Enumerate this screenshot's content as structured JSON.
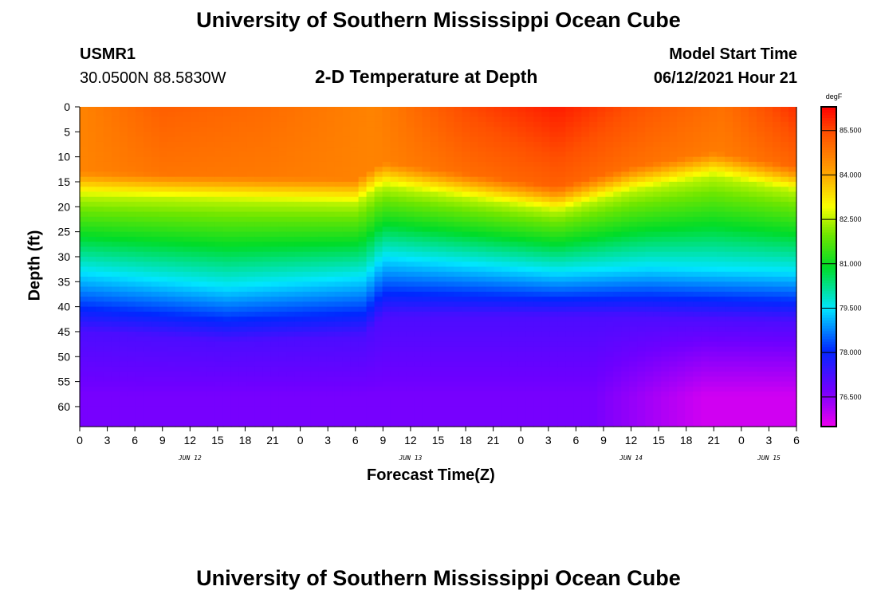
{
  "header": {
    "title": "University of Southern Mississippi Ocean Cube",
    "station": "USMR1",
    "coords": "30.0500N  88.5830W",
    "subtitle": "2-D Temperature at Depth",
    "model_label": "Model Start Time",
    "model_time": "06/12/2021 Hour 21"
  },
  "footer": {
    "title": "University of Southern Mississippi Ocean Cube"
  },
  "chart_data": {
    "type": "heatmap",
    "title": "2-D Temperature at Depth",
    "xlabel": "Forecast Time(Z)",
    "ylabel": "Depth (ft)",
    "units": "degF",
    "x_range_hours": [
      0,
      78
    ],
    "x_tick_labels": [
      "0",
      "3",
      "6",
      "9",
      "12",
      "15",
      "18",
      "21",
      "0",
      "3",
      "6",
      "9",
      "12",
      "15",
      "18",
      "21",
      "0",
      "3",
      "6",
      "9",
      "12",
      "15",
      "18",
      "21",
      "0",
      "3",
      "6"
    ],
    "date_labels": [
      {
        "label": "JUN 12",
        "hour": 12
      },
      {
        "label": "JUN 13",
        "hour": 36
      },
      {
        "label": "JUN 14",
        "hour": 60
      },
      {
        "label": "JUN 15",
        "hour": 75
      }
    ],
    "y_ticks": [
      0,
      5,
      10,
      15,
      20,
      25,
      30,
      35,
      40,
      45,
      50,
      55,
      60
    ],
    "ylim": [
      0,
      64
    ],
    "colorbar": {
      "label": "degF",
      "ticks": [
        "85.500",
        "84.000",
        "82.500",
        "81.000",
        "79.500",
        "78.000",
        "76.500"
      ],
      "tick_values": [
        85.5,
        84.0,
        82.5,
        81.0,
        79.5,
        78.0,
        76.5
      ],
      "range": [
        75.5,
        86.3
      ]
    },
    "surface_temp_degF": [
      {
        "hour": 0,
        "value": 84.6
      },
      {
        "hour": 9,
        "value": 85.2
      },
      {
        "hour": 20,
        "value": 85.0
      },
      {
        "hour": 32,
        "value": 84.6
      },
      {
        "hour": 42,
        "value": 85.5
      },
      {
        "hour": 52,
        "value": 86.0
      },
      {
        "hour": 62,
        "value": 85.3
      },
      {
        "hour": 70,
        "value": 84.9
      },
      {
        "hour": 78,
        "value": 85.8
      }
    ],
    "isotherm_82_5_depth_ft": [
      {
        "hour": 0,
        "value": 18
      },
      {
        "hour": 30,
        "value": 19.5
      },
      {
        "hour": 33,
        "value": 16
      },
      {
        "hour": 52,
        "value": 21
      },
      {
        "hour": 60,
        "value": 17
      },
      {
        "hour": 69,
        "value": 14
      },
      {
        "hour": 78,
        "value": 17
      }
    ],
    "isotherm_79_5_depth_ft": [
      {
        "hour": 0,
        "value": 33
      },
      {
        "hour": 16,
        "value": 36
      },
      {
        "hour": 31,
        "value": 34
      },
      {
        "hour": 33,
        "value": 30
      },
      {
        "hour": 52,
        "value": 33
      },
      {
        "hour": 62,
        "value": 32
      },
      {
        "hour": 78,
        "value": 33
      }
    ],
    "isotherm_77_2_depth_ft": [
      {
        "hour": 0,
        "value": 45
      },
      {
        "hour": 16,
        "value": 47
      },
      {
        "hour": 31,
        "value": 46
      },
      {
        "hour": 33,
        "value": 42
      },
      {
        "hour": 60,
        "value": 42
      },
      {
        "hour": 78,
        "value": 43
      }
    ],
    "bottom_min_temp_degF": {
      "value": 75.8,
      "depth_ft": 58,
      "hours": [
        60,
        78
      ]
    }
  }
}
